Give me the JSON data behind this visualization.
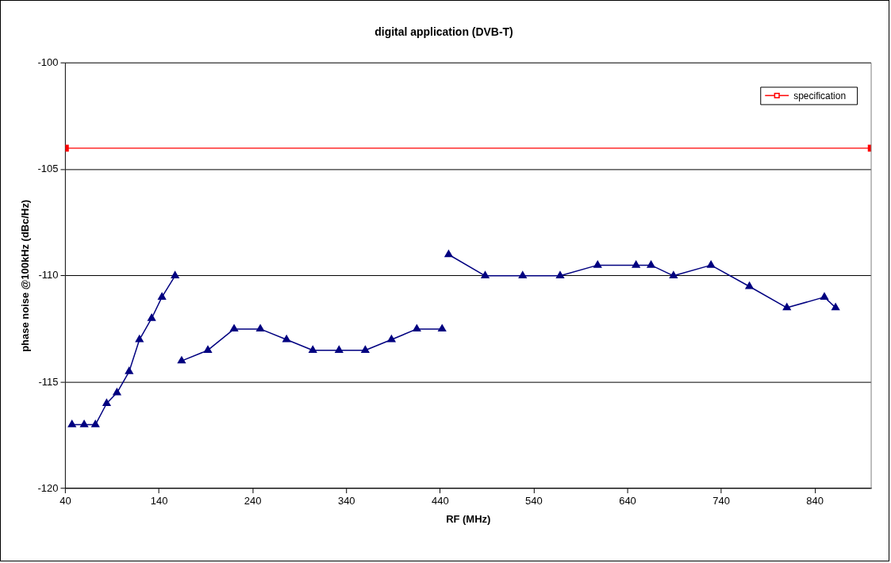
{
  "chart_data": {
    "type": "line",
    "title": "digital application (DVB-T)",
    "xlabel": "RF (MHz)",
    "ylabel": "phase noise @100kHz (dBc/Hz)",
    "xlim": [
      40,
      900
    ],
    "xticks": [
      40,
      140,
      240,
      340,
      440,
      540,
      640,
      740,
      840
    ],
    "ylim": [
      -120,
      -100
    ],
    "yticks": [
      -120,
      -115,
      -110,
      -105,
      -100
    ],
    "grid": "y",
    "legend": "top right",
    "line_style": "solid",
    "series": [
      {
        "color": "#000080",
        "marker": "triangle",
        "x": [
          47,
          60,
          72,
          84,
          95,
          108,
          119,
          132,
          143,
          157,
          160,
          164,
          192,
          220,
          248,
          276,
          304,
          332,
          360,
          388,
          415,
          442,
          445,
          449,
          488,
          528,
          568,
          608,
          649,
          665,
          689,
          729,
          770,
          810,
          850,
          862
        ],
        "values": [
          -117,
          -117,
          -117,
          -116,
          -115.5,
          -114.5,
          -113,
          -112,
          -111,
          -110,
          null,
          -114,
          -113.5,
          -112.5,
          -112.5,
          -113,
          -113.5,
          -113.5,
          -113.5,
          -113,
          -112.5,
          -112.5,
          null,
          -109,
          -110,
          -110,
          -110,
          -109.5,
          -109.5,
          -109.5,
          -110,
          -109.5,
          -110.5,
          -111.5,
          -111,
          -111.5
        ]
      },
      {
        "name": "specification",
        "color": "#ff0000",
        "marker": "square",
        "x": [
          40,
          900
        ],
        "values": [
          -104,
          -104
        ]
      }
    ]
  }
}
